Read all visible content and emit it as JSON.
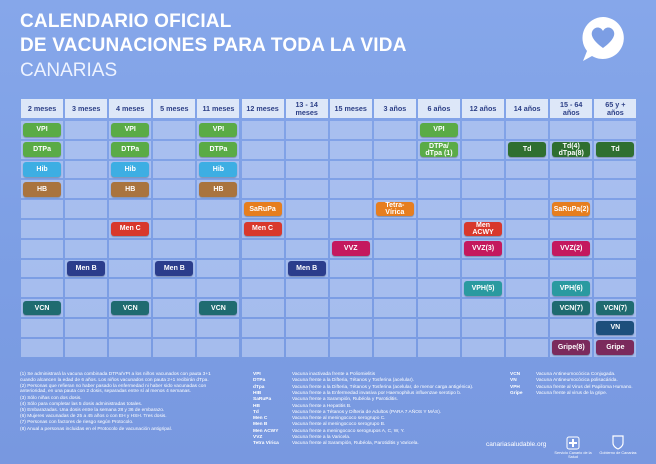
{
  "header": {
    "title_line_1": "CALENDARIO OFICIAL",
    "title_line_2": "DE VACUNACIONES PARA TODA LA VIDA",
    "region": "CANARIAS"
  },
  "schedule": {
    "columns": [
      "2 meses",
      "3 meses",
      "4 meses",
      "5 meses",
      "11 meses",
      "12 meses",
      "13 - 14 meses",
      "15 meses",
      "3 años",
      "6 años",
      "12 años",
      "14 años",
      "15 - 64 años",
      "65 y + años"
    ],
    "rows": [
      [
        {
          "text": "VPI",
          "color": "#5aab46"
        },
        null,
        {
          "text": "VPI",
          "color": "#5aab46"
        },
        null,
        {
          "text": "VPI",
          "color": "#5aab46"
        },
        null,
        null,
        null,
        null,
        {
          "text": "VPI",
          "color": "#5aab46"
        },
        null,
        null,
        null,
        null
      ],
      [
        {
          "text": "DTPa",
          "color": "#5aab46"
        },
        null,
        {
          "text": "DTPa",
          "color": "#5aab46"
        },
        null,
        {
          "text": "DTPa",
          "color": "#5aab46"
        },
        null,
        null,
        null,
        null,
        {
          "text": "DTPa/ dTpa (1)",
          "color": "#5aab46"
        },
        null,
        {
          "text": "Td",
          "color": "#2f6f30"
        },
        {
          "text": "Td(4) dTpa(8)",
          "color": "#2f6f30"
        },
        {
          "text": "Td",
          "color": "#2f6f30"
        }
      ],
      [
        {
          "text": "Hib",
          "color": "#3daee3"
        },
        null,
        {
          "text": "Hib",
          "color": "#3daee3"
        },
        null,
        {
          "text": "Hib",
          "color": "#3daee3"
        },
        null,
        null,
        null,
        null,
        null,
        null,
        null,
        null,
        null
      ],
      [
        {
          "text": "HB",
          "color": "#a9743f"
        },
        null,
        {
          "text": "HB",
          "color": "#a9743f"
        },
        null,
        {
          "text": "HB",
          "color": "#a9743f"
        },
        null,
        null,
        null,
        null,
        null,
        null,
        null,
        null,
        null
      ],
      [
        null,
        null,
        null,
        null,
        null,
        {
          "text": "SaRuPa",
          "color": "#e67e1f"
        },
        null,
        null,
        {
          "text": "Tetra-Vírica",
          "color": "#e67e1f"
        },
        null,
        null,
        null,
        {
          "text": "SaRuPa(2)",
          "color": "#e67e1f"
        },
        null
      ],
      [
        null,
        null,
        {
          "text": "Men C",
          "color": "#d8382c"
        },
        null,
        null,
        {
          "text": "Men C",
          "color": "#d8382c"
        },
        null,
        null,
        null,
        null,
        {
          "text": "Men ACWY",
          "color": "#d8382c"
        },
        null,
        null,
        null
      ],
      [
        null,
        null,
        null,
        null,
        null,
        null,
        null,
        {
          "text": "VVZ",
          "color": "#c4195e"
        },
        null,
        null,
        {
          "text": "VVZ(3)",
          "color": "#c4195e"
        },
        null,
        {
          "text": "VVZ(2)",
          "color": "#c4195e"
        },
        null
      ],
      [
        null,
        {
          "text": "Men B",
          "color": "#2b3d8c"
        },
        null,
        {
          "text": "Men B",
          "color": "#2b3d8c"
        },
        null,
        null,
        {
          "text": "Men B",
          "color": "#2b3d8c"
        },
        null,
        null,
        null,
        null,
        null,
        null,
        null
      ],
      [
        null,
        null,
        null,
        null,
        null,
        null,
        null,
        null,
        null,
        null,
        {
          "text": "VPH(5)",
          "color": "#2a9aa0"
        },
        null,
        {
          "text": "VPH(6)",
          "color": "#2a9aa0"
        },
        null
      ],
      [
        {
          "text": "VCN",
          "color": "#1f6b70"
        },
        null,
        {
          "text": "VCN",
          "color": "#1f6b70"
        },
        null,
        {
          "text": "VCN",
          "color": "#1f6b70"
        },
        null,
        null,
        null,
        null,
        null,
        null,
        null,
        {
          "text": "VCN(7)",
          "color": "#1f6b70"
        },
        {
          "text": "VCN(7)",
          "color": "#1f6b70"
        }
      ],
      [
        null,
        null,
        null,
        null,
        null,
        null,
        null,
        null,
        null,
        null,
        null,
        null,
        null,
        {
          "text": "VN",
          "color": "#1d4f7c"
        }
      ],
      [
        null,
        null,
        null,
        null,
        null,
        null,
        null,
        null,
        null,
        null,
        null,
        null,
        {
          "text": "Gripe(8)",
          "color": "#7b2a5c"
        },
        {
          "text": "Gripe",
          "color": "#7b2a5c"
        }
      ]
    ]
  },
  "notes": [
    "(1) Se administrará la vacuna combinada DTPa/VPI a los niños vacunados con pauta 3+1 cuando alcancen la edad de 6 años. Los niños vacunados con pauta 2+1 recibirán dTpa.",
    "(2) Personas que refieran no haber pasado la enfermedad ni haber sido vacunadas con anterioridad, en una pauta con 2 dosis, separadas entre sí al menos 4 semanas.",
    "(3) Sólo niñas con dos dosis.",
    "(4) Sólo para completar las 5 dosis administradas totales.",
    "(5) Embarazadas. Una dosis entre la semana 28 y 36 de embarazo.",
    "(6) Mujeres vacunadas de 25 a 45 años o con EH y HSH. Tres dosis.",
    "(7) Personas con factores de riesgo según Protocolo.",
    "(8) Anual a personas incluidas en el Protocolo de vacunación antigripal."
  ],
  "abbreviations": [
    {
      "abbr": "VPI",
      "desc": "Vacuna inactivada frente a Poliomielitis"
    },
    {
      "abbr": "DTPa",
      "desc": "Vacuna frente a la Difteria, Tétanos y Tosferina (acelular)."
    },
    {
      "abbr": "dTpa",
      "desc": "Vacuna frente a la Difteria, Tétanos y Tosferina (acelular, de menor carga antigénica)."
    },
    {
      "abbr": "HIB",
      "desc": "Vacuna frente a la Enfermedad invasiva por Haemophilus influenzae serotipo b."
    },
    {
      "abbr": "SaRuPa",
      "desc": "Vacuna frente a Sarampión, Rubéola y Parotiditis."
    },
    {
      "abbr": "HB",
      "desc": "Vacuna frente a Hepatitis B."
    },
    {
      "abbr": "Td",
      "desc": "Vacuna frente a Tétanos y Difteria de Adultos (PARA 7 AÑOS Y MÁS)."
    },
    {
      "abbr": "Men C",
      "desc": "Vacuna frente al meningococo serogrupo C."
    },
    {
      "abbr": "Men B",
      "desc": "Vacuna frente al meningococo serogrupo B."
    },
    {
      "abbr": "Men ACWY",
      "desc": "Vacuna frente a meningococo serogrupos A, C, W, Y."
    },
    {
      "abbr": "VVZ",
      "desc": "Vacuna frente a la Varicela."
    },
    {
      "abbr": "Tetra Vírica",
      "desc": "Vacuna frente al Sarampión, Rubéola, Parotiditis y Varicela."
    }
  ],
  "abbreviations_right": [
    {
      "abbr": "VCN",
      "desc": "Vacuna Antineumocócica Conjugada."
    },
    {
      "abbr": "VN",
      "desc": "Vacuna Antineumocócica polisacárida."
    },
    {
      "abbr": "VPH",
      "desc": "Vacuna frente al Virus del Papiloma Humano."
    },
    {
      "abbr": "Gripe",
      "desc": "Vacuna frente al virus de la gripe."
    }
  ],
  "footer": {
    "website": "canariasaludable.org",
    "logo_1": "Servicio Canario de la Salud",
    "logo_2": "Gobierno de Canarias"
  }
}
